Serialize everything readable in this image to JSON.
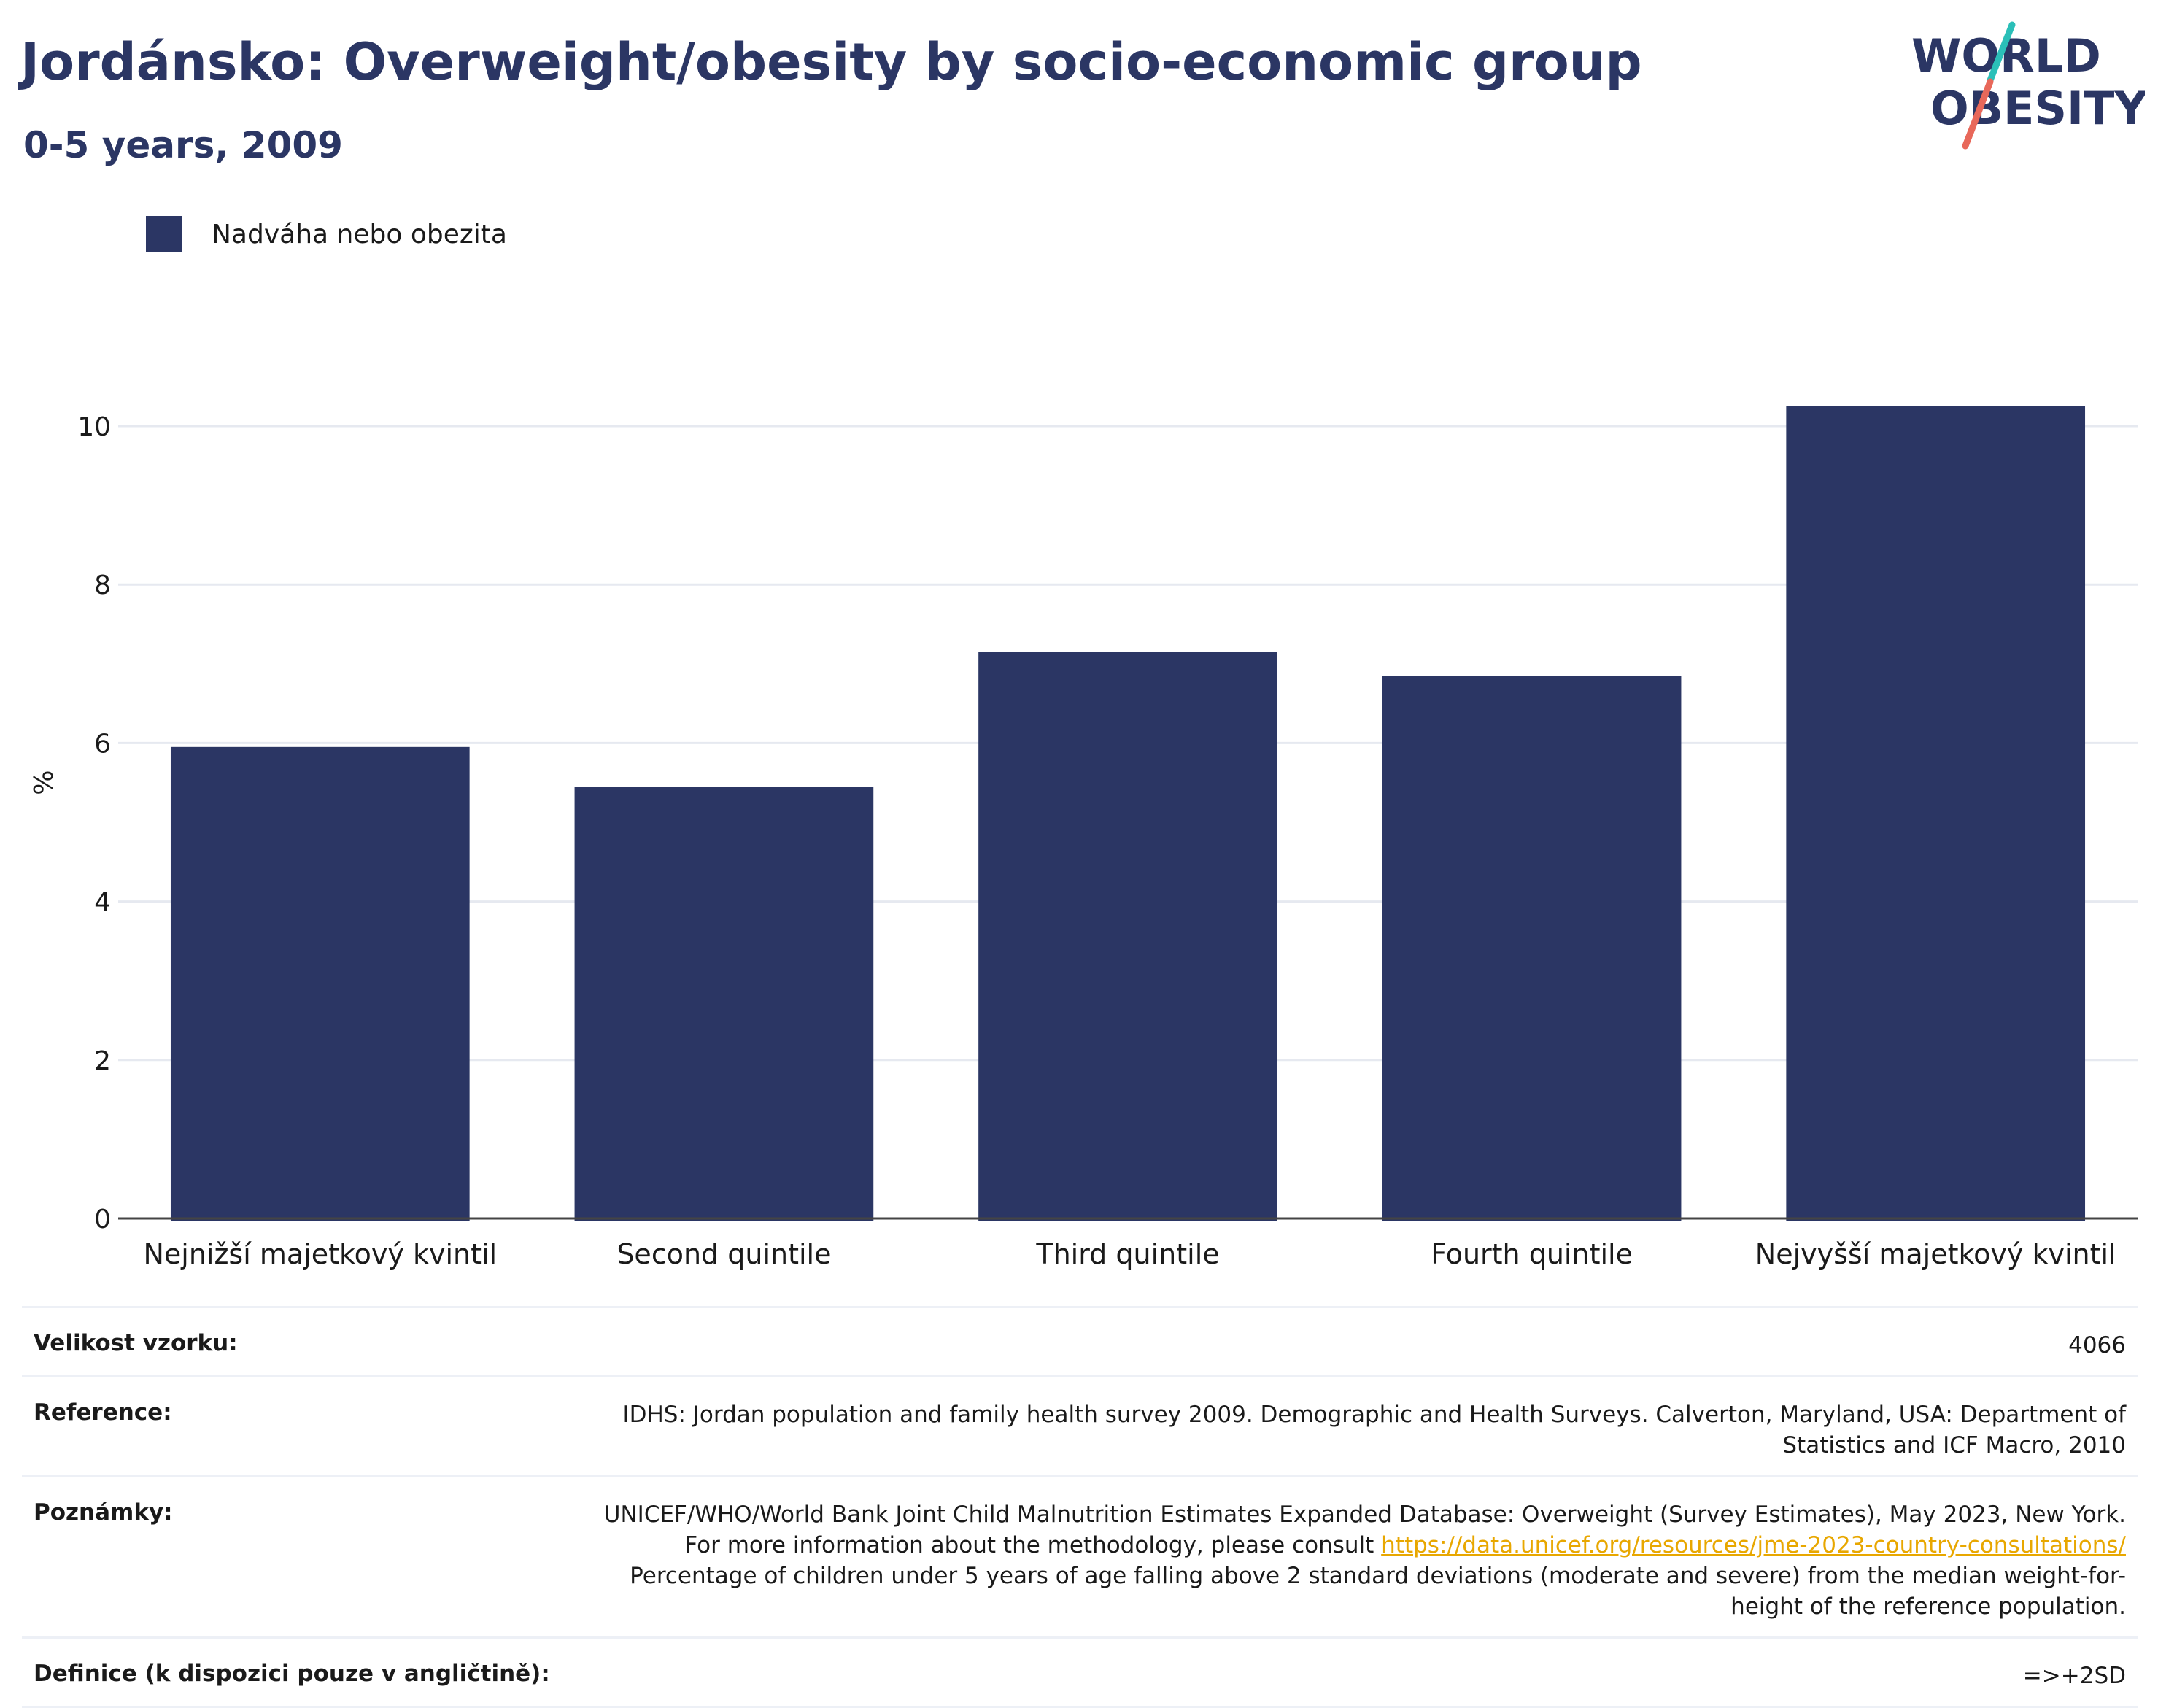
{
  "header": {
    "title": "Jordánsko: Overweight/obesity by socio-economic group",
    "subtitle": "0-5 years, 2009"
  },
  "logo": {
    "line1": "WORLD",
    "line2": "OBESITY",
    "accent_colors": [
      "#2bbfb8",
      "#e8685a"
    ]
  },
  "legend": {
    "label": "Nadváha nebo obezita",
    "color": "#2b3664"
  },
  "chart_data": {
    "type": "bar",
    "categories": [
      "Nejnižší majetkový kvintil",
      "Second quintile",
      "Third quintile",
      "Fourth quintile",
      "Nejvyšší majetkový kvintil"
    ],
    "series": [
      {
        "name": "Nadváha nebo obezita",
        "values": [
          5.95,
          5.45,
          7.15,
          6.85,
          10.25
        ],
        "color": "#2b3664"
      }
    ],
    "ylabel": "%",
    "ylim": [
      0,
      11
    ],
    "yticks": [
      0,
      2,
      4,
      6,
      8,
      10
    ],
    "grid": true,
    "legend_position": "top-left"
  },
  "meta": {
    "rows": [
      {
        "key": "Velikost vzorku:",
        "value": "4066"
      },
      {
        "key": "Reference:",
        "value": "IDHS: Jordan population and family health survey 2009. Demographic and Health Surveys. Calverton, Maryland, USA: Department of Statistics and ICF Macro, 2010"
      },
      {
        "key": "Poznámky:",
        "value_before": "UNICEF/WHO/World Bank Joint Child Malnutrition Estimates Expanded Database: Overweight (Survey Estimates), May 2023, New York. For more information about the methodology, please consult ",
        "link": "https://data.unicef.org/resources/jme-2023-country-consultations/",
        "value_after": " Percentage of children under 5 years of age falling above 2 standard deviations (moderate and severe) from the median weight-for-height of the reference population."
      },
      {
        "key": "Definice (k dispozici pouze v angličtině):",
        "value": "=>+2SD"
      }
    ]
  }
}
